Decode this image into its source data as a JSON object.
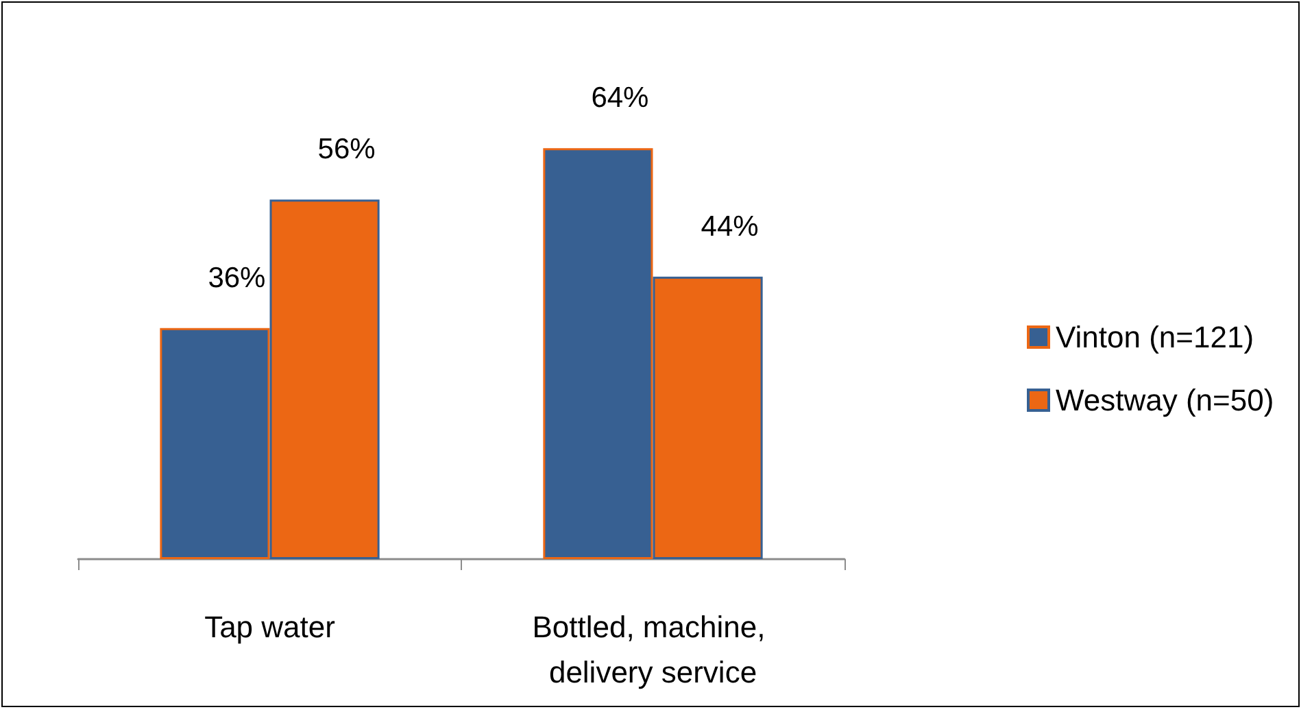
{
  "chart_data": {
    "type": "bar",
    "categories": [
      "Tap water",
      "Bottled, machine, delivery service"
    ],
    "series": [
      {
        "name": "Vinton (n=121)",
        "color": "#376092",
        "values": [
          36,
          64
        ],
        "value_labels": [
          "36%",
          "64%"
        ]
      },
      {
        "name": "Westway (n=50)",
        "color": "#ec6714",
        "values": [
          56,
          44
        ],
        "value_labels": [
          "56%",
          "44%"
        ]
      }
    ],
    "legend": "right"
  }
}
